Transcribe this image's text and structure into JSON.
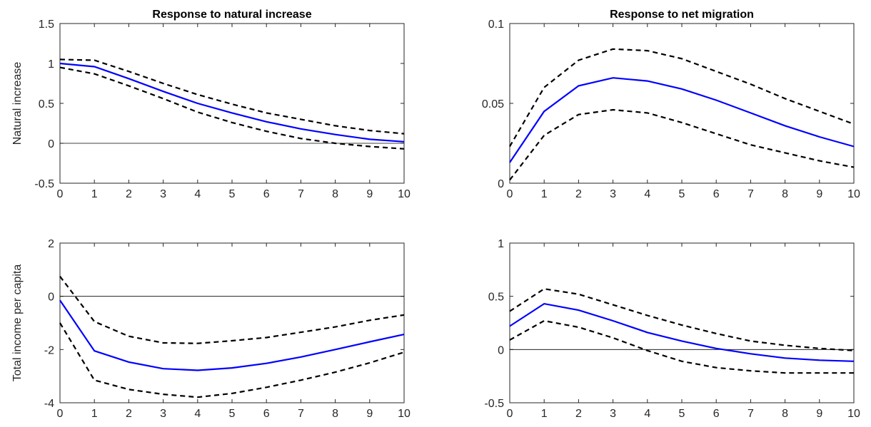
{
  "figure": {
    "colors": {
      "irf": "#0000ff",
      "band": "#000000",
      "axis": "#262626",
      "zero_line": "#000000"
    }
  },
  "chart_data": [
    {
      "type": "line",
      "title": "Response to natural increase",
      "ylabel": "Natural increase",
      "xlim": [
        0,
        10
      ],
      "ylim": [
        -0.5,
        1.5
      ],
      "x_ticks": [
        "0",
        "1",
        "2",
        "3",
        "4",
        "5",
        "6",
        "7",
        "8",
        "9",
        "10"
      ],
      "y_ticks": [
        "-0.5",
        "0",
        "0.5",
        "1",
        "1.5"
      ],
      "x": [
        0,
        1,
        2,
        3,
        4,
        5,
        6,
        7,
        8,
        9,
        10
      ],
      "zero_line": 0,
      "series": [
        {
          "role": "irf",
          "values": [
            1.0,
            0.96,
            0.81,
            0.65,
            0.5,
            0.38,
            0.27,
            0.18,
            0.11,
            0.05,
            0.02
          ]
        },
        {
          "role": "upper",
          "values": [
            1.05,
            1.04,
            0.9,
            0.75,
            0.61,
            0.49,
            0.38,
            0.3,
            0.22,
            0.16,
            0.12
          ]
        },
        {
          "role": "lower",
          "values": [
            0.95,
            0.87,
            0.72,
            0.56,
            0.39,
            0.26,
            0.15,
            0.06,
            0.0,
            -0.04,
            -0.07
          ]
        }
      ]
    },
    {
      "type": "line",
      "title": "Response to net migration",
      "ylabel": "",
      "xlim": [
        0,
        10
      ],
      "ylim": [
        0,
        0.1
      ],
      "x_ticks": [
        "0",
        "1",
        "2",
        "3",
        "4",
        "5",
        "6",
        "7",
        "8",
        "9",
        "10"
      ],
      "y_ticks": [
        "0",
        "0.05",
        "0.1"
      ],
      "x": [
        0,
        1,
        2,
        3,
        4,
        5,
        6,
        7,
        8,
        9,
        10
      ],
      "zero_line": null,
      "series": [
        {
          "role": "irf",
          "values": [
            0.013,
            0.045,
            0.061,
            0.066,
            0.064,
            0.059,
            0.052,
            0.044,
            0.036,
            0.029,
            0.023
          ]
        },
        {
          "role": "upper",
          "values": [
            0.023,
            0.06,
            0.077,
            0.084,
            0.083,
            0.078,
            0.07,
            0.062,
            0.053,
            0.045,
            0.037
          ]
        },
        {
          "role": "lower",
          "values": [
            0.002,
            0.03,
            0.043,
            0.046,
            0.044,
            0.038,
            0.031,
            0.024,
            0.019,
            0.014,
            0.01
          ]
        }
      ]
    },
    {
      "type": "line",
      "title": "",
      "ylabel": "Total income per capita",
      "xlim": [
        0,
        10
      ],
      "ylim": [
        -4,
        2
      ],
      "x_ticks": [
        "0",
        "1",
        "2",
        "3",
        "4",
        "5",
        "6",
        "7",
        "8",
        "9",
        "10"
      ],
      "y_ticks": [
        "-4",
        "-2",
        "0",
        "2"
      ],
      "x": [
        0,
        1,
        2,
        3,
        4,
        5,
        6,
        7,
        8,
        9,
        10
      ],
      "zero_line": 0,
      "series": [
        {
          "role": "irf",
          "values": [
            -0.15,
            -2.05,
            -2.47,
            -2.72,
            -2.78,
            -2.69,
            -2.52,
            -2.28,
            -2.0,
            -1.71,
            -1.43
          ]
        },
        {
          "role": "upper",
          "values": [
            0.75,
            -0.95,
            -1.5,
            -1.75,
            -1.77,
            -1.67,
            -1.55,
            -1.35,
            -1.15,
            -0.9,
            -0.7
          ]
        },
        {
          "role": "lower",
          "values": [
            -1.0,
            -3.15,
            -3.5,
            -3.68,
            -3.79,
            -3.65,
            -3.42,
            -3.15,
            -2.85,
            -2.5,
            -2.1
          ]
        }
      ]
    },
    {
      "type": "line",
      "title": "",
      "ylabel": "",
      "xlim": [
        0,
        10
      ],
      "ylim": [
        -0.5,
        1
      ],
      "x_ticks": [
        "0",
        "1",
        "2",
        "3",
        "4",
        "5",
        "6",
        "7",
        "8",
        "9",
        "10"
      ],
      "y_ticks": [
        "-0.5",
        "0",
        "0.5",
        "1"
      ],
      "x": [
        0,
        1,
        2,
        3,
        4,
        5,
        6,
        7,
        8,
        9,
        10
      ],
      "zero_line": 0,
      "series": [
        {
          "role": "irf",
          "values": [
            0.22,
            0.43,
            0.37,
            0.27,
            0.16,
            0.08,
            0.01,
            -0.04,
            -0.08,
            -0.1,
            -0.11
          ]
        },
        {
          "role": "upper",
          "values": [
            0.36,
            0.57,
            0.52,
            0.42,
            0.32,
            0.23,
            0.15,
            0.08,
            0.04,
            0.01,
            -0.01
          ]
        },
        {
          "role": "lower",
          "values": [
            0.09,
            0.27,
            0.21,
            0.11,
            -0.01,
            -0.11,
            -0.17,
            -0.2,
            -0.22,
            -0.22,
            -0.22
          ]
        }
      ]
    }
  ]
}
